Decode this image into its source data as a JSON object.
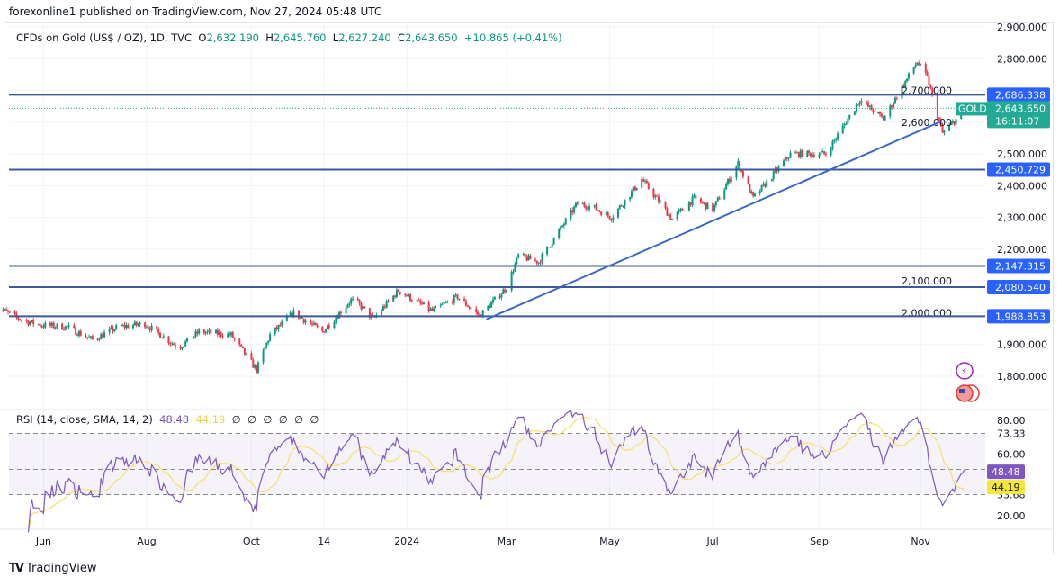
{
  "publisher_line": "forexonline1 published on TradingView.com, Nov 27, 2024 05:48 UTC",
  "legend": {
    "symbol": "CFDs on Gold (US$ / OZ), 1D, TVC",
    "open_label": "O",
    "open": "2,632.190",
    "high_label": "H",
    "high": "2,645.760",
    "low_label": "L",
    "low": "2,627.240",
    "close_label": "C",
    "close": "2,643.650",
    "change": "+10.865 (+0.41%)"
  },
  "rsi_legend": {
    "title": "RSI (14, close, SMA, 14, 2)",
    "rsi": "48.48",
    "sma": "44.19",
    "empty_values": [
      "∅",
      "∅",
      "∅",
      "∅",
      "∅",
      "∅"
    ]
  },
  "price_badge": {
    "symbol": "GOLD",
    "price": "2,643.650",
    "countdown": "16:11:07"
  },
  "rsi_badges": {
    "rsi": "48.48",
    "sma": "44.19"
  },
  "colors": {
    "up": "#089981",
    "down": "#F23645",
    "level_line": "#2962FF",
    "trendline": "#3A67C8",
    "rsi": "#7E57C2",
    "rsi_sma": "#F5E06A",
    "badge_price": "#22AB94"
  },
  "footer": {
    "brand": "TradingView",
    "logo_icon": "tradingview-logo-icon"
  },
  "icons": [
    "lightning-event-icon",
    "us-flag-economic-event-icon"
  ],
  "chart_data": [
    {
      "type": "candlestick",
      "title": "CFDs on Gold (US$ / OZ), 1D, TVC",
      "ylim": [
        1740,
        2910
      ],
      "yticks": [
        "2,900.000",
        "2,800.000",
        "2,700.000",
        "2,600.000",
        "2,500.000",
        "2,400.000",
        "2,300.000",
        "2,200.000",
        "2,100.000",
        "2,000.000",
        "1,900.000",
        "1,800.000"
      ],
      "xticks": [
        {
          "label": "Jun",
          "date": "2023-06-01"
        },
        {
          "label": "Aug",
          "date": "2023-08-01"
        },
        {
          "label": "Oct",
          "date": "2023-10-02"
        },
        {
          "label": "14",
          "date": "2023-11-14"
        },
        {
          "label": "2024",
          "date": "2024-01-02"
        },
        {
          "label": "Mar",
          "date": "2024-03-01"
        },
        {
          "label": "May",
          "date": "2024-05-01"
        },
        {
          "label": "Jul",
          "date": "2024-07-01"
        },
        {
          "label": "Sep",
          "date": "2024-09-02"
        },
        {
          "label": "Nov",
          "date": "2024-11-01"
        }
      ],
      "approx_closes": [
        [
          "2023-05-03",
          2020
        ],
        [
          "2023-05-20",
          1975
        ],
        [
          "2023-06-01",
          1960
        ],
        [
          "2023-06-15",
          1955
        ],
        [
          "2023-06-30",
          1915
        ],
        [
          "2023-07-15",
          1955
        ],
        [
          "2023-07-31",
          1965
        ],
        [
          "2023-08-20",
          1890
        ],
        [
          "2023-09-01",
          1940
        ],
        [
          "2023-09-20",
          1930
        ],
        [
          "2023-10-05",
          1820
        ],
        [
          "2023-10-13",
          1930
        ],
        [
          "2023-10-27",
          2000
        ],
        [
          "2023-11-13",
          1940
        ],
        [
          "2023-11-30",
          2040
        ],
        [
          "2023-12-04",
          2030
        ],
        [
          "2023-12-13",
          1980
        ],
        [
          "2023-12-28",
          2070
        ],
        [
          "2024-01-17",
          2005
        ],
        [
          "2024-02-01",
          2050
        ],
        [
          "2024-02-14",
          1990
        ],
        [
          "2024-03-01",
          2080
        ],
        [
          "2024-03-08",
          2180
        ],
        [
          "2024-03-20",
          2160
        ],
        [
          "2024-04-12",
          2345
        ],
        [
          "2024-04-22",
          2330
        ],
        [
          "2024-05-02",
          2300
        ],
        [
          "2024-05-20",
          2420
        ],
        [
          "2024-06-07",
          2295
        ],
        [
          "2024-06-20",
          2360
        ],
        [
          "2024-07-01",
          2325
        ],
        [
          "2024-07-16",
          2470
        ],
        [
          "2024-07-25",
          2360
        ],
        [
          "2024-08-16",
          2500
        ],
        [
          "2024-09-06",
          2500
        ],
        [
          "2024-09-26",
          2670
        ],
        [
          "2024-10-10",
          2610
        ],
        [
          "2024-10-30",
          2790
        ],
        [
          "2024-11-05",
          2740
        ],
        [
          "2024-11-14",
          2565
        ],
        [
          "2024-11-25",
          2625
        ],
        [
          "2024-11-27",
          2643.65
        ]
      ],
      "horizontal_levels": [
        {
          "price": 2686.338,
          "label": "2,686.338"
        },
        {
          "price": 2450.729,
          "label": "2,450.729"
        },
        {
          "price": 2147.315,
          "label": "2,147.315"
        },
        {
          "price": 2080.54,
          "label": "2,080.540"
        },
        {
          "price": 1988.853,
          "label": "1,988.853"
        }
      ],
      "current_price": 2643.65,
      "trendline": [
        [
          "2024-02-18",
          1979
        ],
        [
          "2024-11-13",
          2602
        ]
      ]
    },
    {
      "type": "line",
      "title": "RSI (14, close, SMA, 14, 2)",
      "ylim": [
        15,
        85
      ],
      "yticks": [
        "80.00",
        "73.33",
        "60.00",
        "33.68",
        "20.00"
      ],
      "band": [
        33.68,
        73.33
      ],
      "midline": 50,
      "series": [
        {
          "name": "RSI",
          "last": 48.48
        },
        {
          "name": "SMA",
          "last": 44.19
        }
      ]
    }
  ]
}
